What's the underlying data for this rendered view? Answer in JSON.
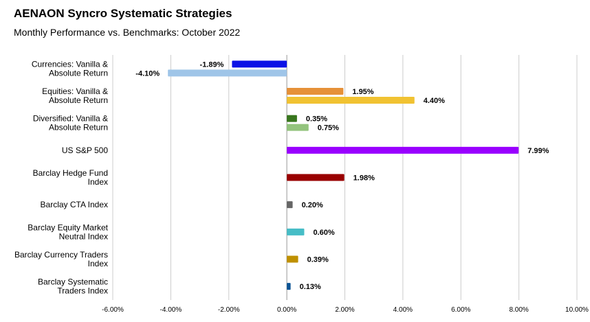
{
  "chart_data": {
    "type": "bar",
    "orientation": "horizontal",
    "title": "AENAON Syncro Systematic Strategies",
    "subtitle": "Monthly Performance vs. Benchmarks: October 2022",
    "xlim": [
      -6,
      10
    ],
    "xticks": [
      "-6.00%",
      "-4.00%",
      "-2.00%",
      "0.00%",
      "2.00%",
      "4.00%",
      "6.00%",
      "8.00%",
      "10.00%"
    ],
    "xtick_values": [
      -6,
      -4,
      -2,
      0,
      2,
      4,
      6,
      8,
      10
    ],
    "grid": "vertical",
    "legend": "none",
    "categories": [
      {
        "label": [
          "Currencies: Vanilla &",
          "Absolute Return"
        ],
        "bars": [
          {
            "value": -1.89,
            "label": "-1.89%",
            "color": "#0b12e6"
          },
          {
            "value": -4.1,
            "label": "-4.10%",
            "color": "#9fc5e8"
          }
        ]
      },
      {
        "label": [
          "Equities: Vanilla &",
          "Absolute Return"
        ],
        "bars": [
          {
            "value": 1.95,
            "label": "1.95%",
            "color": "#e69138"
          },
          {
            "value": 4.4,
            "label": "4.40%",
            "color": "#f1c232"
          }
        ]
      },
      {
        "label": [
          "Diversified: Vanilla &",
          "Absolute Return"
        ],
        "bars": [
          {
            "value": 0.35,
            "label": "0.35%",
            "color": "#38761d"
          },
          {
            "value": 0.75,
            "label": "0.75%",
            "color": "#93c47d"
          }
        ]
      },
      {
        "label": [
          "US S&P 500"
        ],
        "bars": [
          {
            "value": 7.99,
            "label": "7.99%",
            "color": "#9900ff"
          }
        ]
      },
      {
        "label": [
          "Barclay Hedge Fund",
          "Index"
        ],
        "bars": [
          {
            "value": 1.98,
            "label": "1.98%",
            "color": "#990000"
          }
        ]
      },
      {
        "label": [
          "Barclay CTA Index"
        ],
        "bars": [
          {
            "value": 0.2,
            "label": "0.20%",
            "color": "#666666"
          }
        ]
      },
      {
        "label": [
          "Barclay Equity Market",
          "Neutral Index"
        ],
        "bars": [
          {
            "value": 0.6,
            "label": "0.60%",
            "color": "#46bdc6"
          }
        ]
      },
      {
        "label": [
          "Barclay Currency Traders",
          "Index"
        ],
        "bars": [
          {
            "value": 0.39,
            "label": "0.39%",
            "color": "#bf9000"
          }
        ]
      },
      {
        "label": [
          "Barclay Systematic",
          "Traders Index"
        ],
        "bars": [
          {
            "value": 0.13,
            "label": "0.13%",
            "color": "#0b5394"
          }
        ]
      }
    ]
  }
}
